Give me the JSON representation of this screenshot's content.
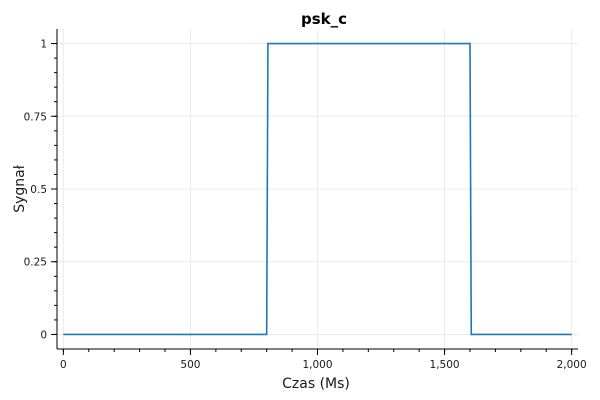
{
  "chart_data": {
    "type": "line",
    "title": "psk_c",
    "xlabel": "Czas (Ms)",
    "ylabel": "Sygnał",
    "xlim": [
      -25,
      2025
    ],
    "ylim": [
      -0.05,
      1.05
    ],
    "x_ticks": [
      0,
      500,
      1000,
      1500,
      2000
    ],
    "x_tick_labels": [
      "0",
      "500",
      "1,000",
      "1,500",
      "2,000"
    ],
    "y_ticks": [
      0,
      0.25,
      0.5,
      0.75,
      1
    ],
    "y_tick_labels": [
      "0",
      "0.25",
      "0.5",
      "0.75",
      "1"
    ],
    "grid": true,
    "legend": "none",
    "series": [
      {
        "color": "#1f77b4",
        "x": [
          0,
          800,
          805,
          1600,
          1605,
          2000
        ],
        "y": [
          0,
          0,
          1,
          1,
          0,
          0
        ]
      }
    ],
    "colors": {
      "line": "#1f77b4",
      "grid": "#ebebeb",
      "axis": "#000000"
    }
  }
}
